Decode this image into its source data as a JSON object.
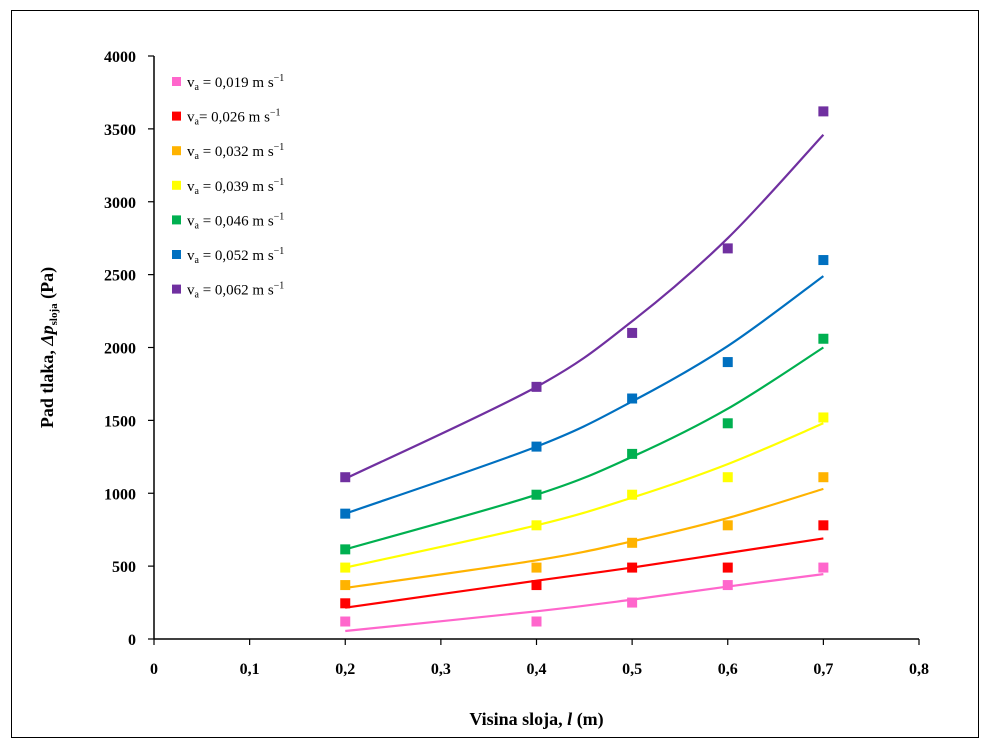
{
  "chart_data": {
    "type": "scatter",
    "xlabel": {
      "main": "Visina sloja, ",
      "var": "l",
      "unit": "  (m)"
    },
    "ylabel": {
      "main": "Pad tlaka, ",
      "var": "Δp",
      "sub": "sloja",
      "unit": "  (Pa)"
    },
    "xlim": [
      0,
      0.8
    ],
    "ylim": [
      0,
      4000
    ],
    "xticks": [
      0,
      0.1,
      0.2,
      0.3,
      0.4,
      0.5,
      0.6,
      0.7,
      0.8
    ],
    "xtick_labels": [
      "0",
      "0,1",
      "0,2",
      "0,3",
      "0,4",
      "0,5",
      "0,6",
      "0,7",
      "0,8"
    ],
    "yticks": [
      0,
      500,
      1000,
      1500,
      2000,
      2500,
      3000,
      3500,
      4000
    ],
    "ytick_labels": [
      "0",
      "500",
      "1000",
      "1500",
      "2000",
      "2500",
      "3000",
      "3500",
      "4000"
    ],
    "grid": false,
    "legend_position": "top-left",
    "x": [
      0.2,
      0.4,
      0.5,
      0.6,
      0.7
    ],
    "series": [
      {
        "name": "v_a = 0,019 m s⁻¹",
        "label": {
          "pre": "v",
          "sub": "a",
          "post": " = 0,019 m s",
          "sup": "−1"
        },
        "color": "#FF66CC",
        "values": [
          120,
          120,
          250,
          370,
          490
        ],
        "trend": [
          {
            "x": 0.2,
            "y": 55
          },
          {
            "x": 0.4,
            "y": 190
          },
          {
            "x": 0.5,
            "y": 270
          },
          {
            "x": 0.6,
            "y": 360
          },
          {
            "x": 0.7,
            "y": 445
          }
        ]
      },
      {
        "name": "v_a= 0,026 m s⁻¹",
        "label": {
          "pre": "v",
          "sub": "a",
          "post": "= 0,026 m s",
          "sup": "−1"
        },
        "color": "#FF0000",
        "values": [
          245,
          370,
          490,
          490,
          780
        ],
        "trend": [
          {
            "x": 0.2,
            "y": 215
          },
          {
            "x": 0.4,
            "y": 400
          },
          {
            "x": 0.5,
            "y": 490
          },
          {
            "x": 0.6,
            "y": 590
          },
          {
            "x": 0.7,
            "y": 690
          }
        ]
      },
      {
        "name": "v_a = 0,032 m s⁻¹",
        "label": {
          "pre": "v",
          "sub": "a",
          "post": " = 0,032 m s",
          "sup": "−1"
        },
        "color": "#FFB300",
        "values": [
          370,
          490,
          660,
          780,
          1110
        ],
        "trend": [
          {
            "x": 0.2,
            "y": 350
          },
          {
            "x": 0.4,
            "y": 540
          },
          {
            "x": 0.5,
            "y": 670
          },
          {
            "x": 0.6,
            "y": 830
          },
          {
            "x": 0.7,
            "y": 1030
          }
        ]
      },
      {
        "name": "v_a = 0,039 m s⁻¹",
        "label": {
          "pre": "v",
          "sub": "a",
          "post": " = 0,039 m s",
          "sup": "−1"
        },
        "color": "#FFFF00",
        "values": [
          490,
          780,
          990,
          1110,
          1520
        ],
        "trend": [
          {
            "x": 0.2,
            "y": 490
          },
          {
            "x": 0.4,
            "y": 780
          },
          {
            "x": 0.5,
            "y": 970
          },
          {
            "x": 0.6,
            "y": 1200
          },
          {
            "x": 0.7,
            "y": 1480
          }
        ]
      },
      {
        "name": "v_a = 0,046 m s⁻¹",
        "label": {
          "pre": "v",
          "sub": "a",
          "post": " = 0,046 m s",
          "sup": "−1"
        },
        "color": "#00B050",
        "values": [
          615,
          990,
          1270,
          1480,
          2060
        ],
        "trend": [
          {
            "x": 0.2,
            "y": 615
          },
          {
            "x": 0.4,
            "y": 990
          },
          {
            "x": 0.5,
            "y": 1250
          },
          {
            "x": 0.6,
            "y": 1580
          },
          {
            "x": 0.7,
            "y": 2000
          }
        ]
      },
      {
        "name": "v_a = 0,052 m s⁻¹",
        "label": {
          "pre": "v",
          "sub": "a",
          "post": " = 0,052 m s",
          "sup": "−1"
        },
        "color": "#0070C0",
        "values": [
          860,
          1320,
          1650,
          1900,
          2600
        ],
        "trend": [
          {
            "x": 0.2,
            "y": 860
          },
          {
            "x": 0.4,
            "y": 1320
          },
          {
            "x": 0.5,
            "y": 1630
          },
          {
            "x": 0.6,
            "y": 2010
          },
          {
            "x": 0.7,
            "y": 2490
          }
        ]
      },
      {
        "name": "v_a = 0,062 m s⁻¹",
        "label": {
          "pre": "v",
          "sub": "a",
          "post": " = 0,062 m s",
          "sup": "−1"
        },
        "color": "#7030A0",
        "values": [
          1110,
          1730,
          2100,
          2680,
          3620
        ],
        "trend": [
          {
            "x": 0.2,
            "y": 1100
          },
          {
            "x": 0.4,
            "y": 1730
          },
          {
            "x": 0.5,
            "y": 2180
          },
          {
            "x": 0.6,
            "y": 2750
          },
          {
            "x": 0.7,
            "y": 3460
          }
        ]
      }
    ]
  }
}
